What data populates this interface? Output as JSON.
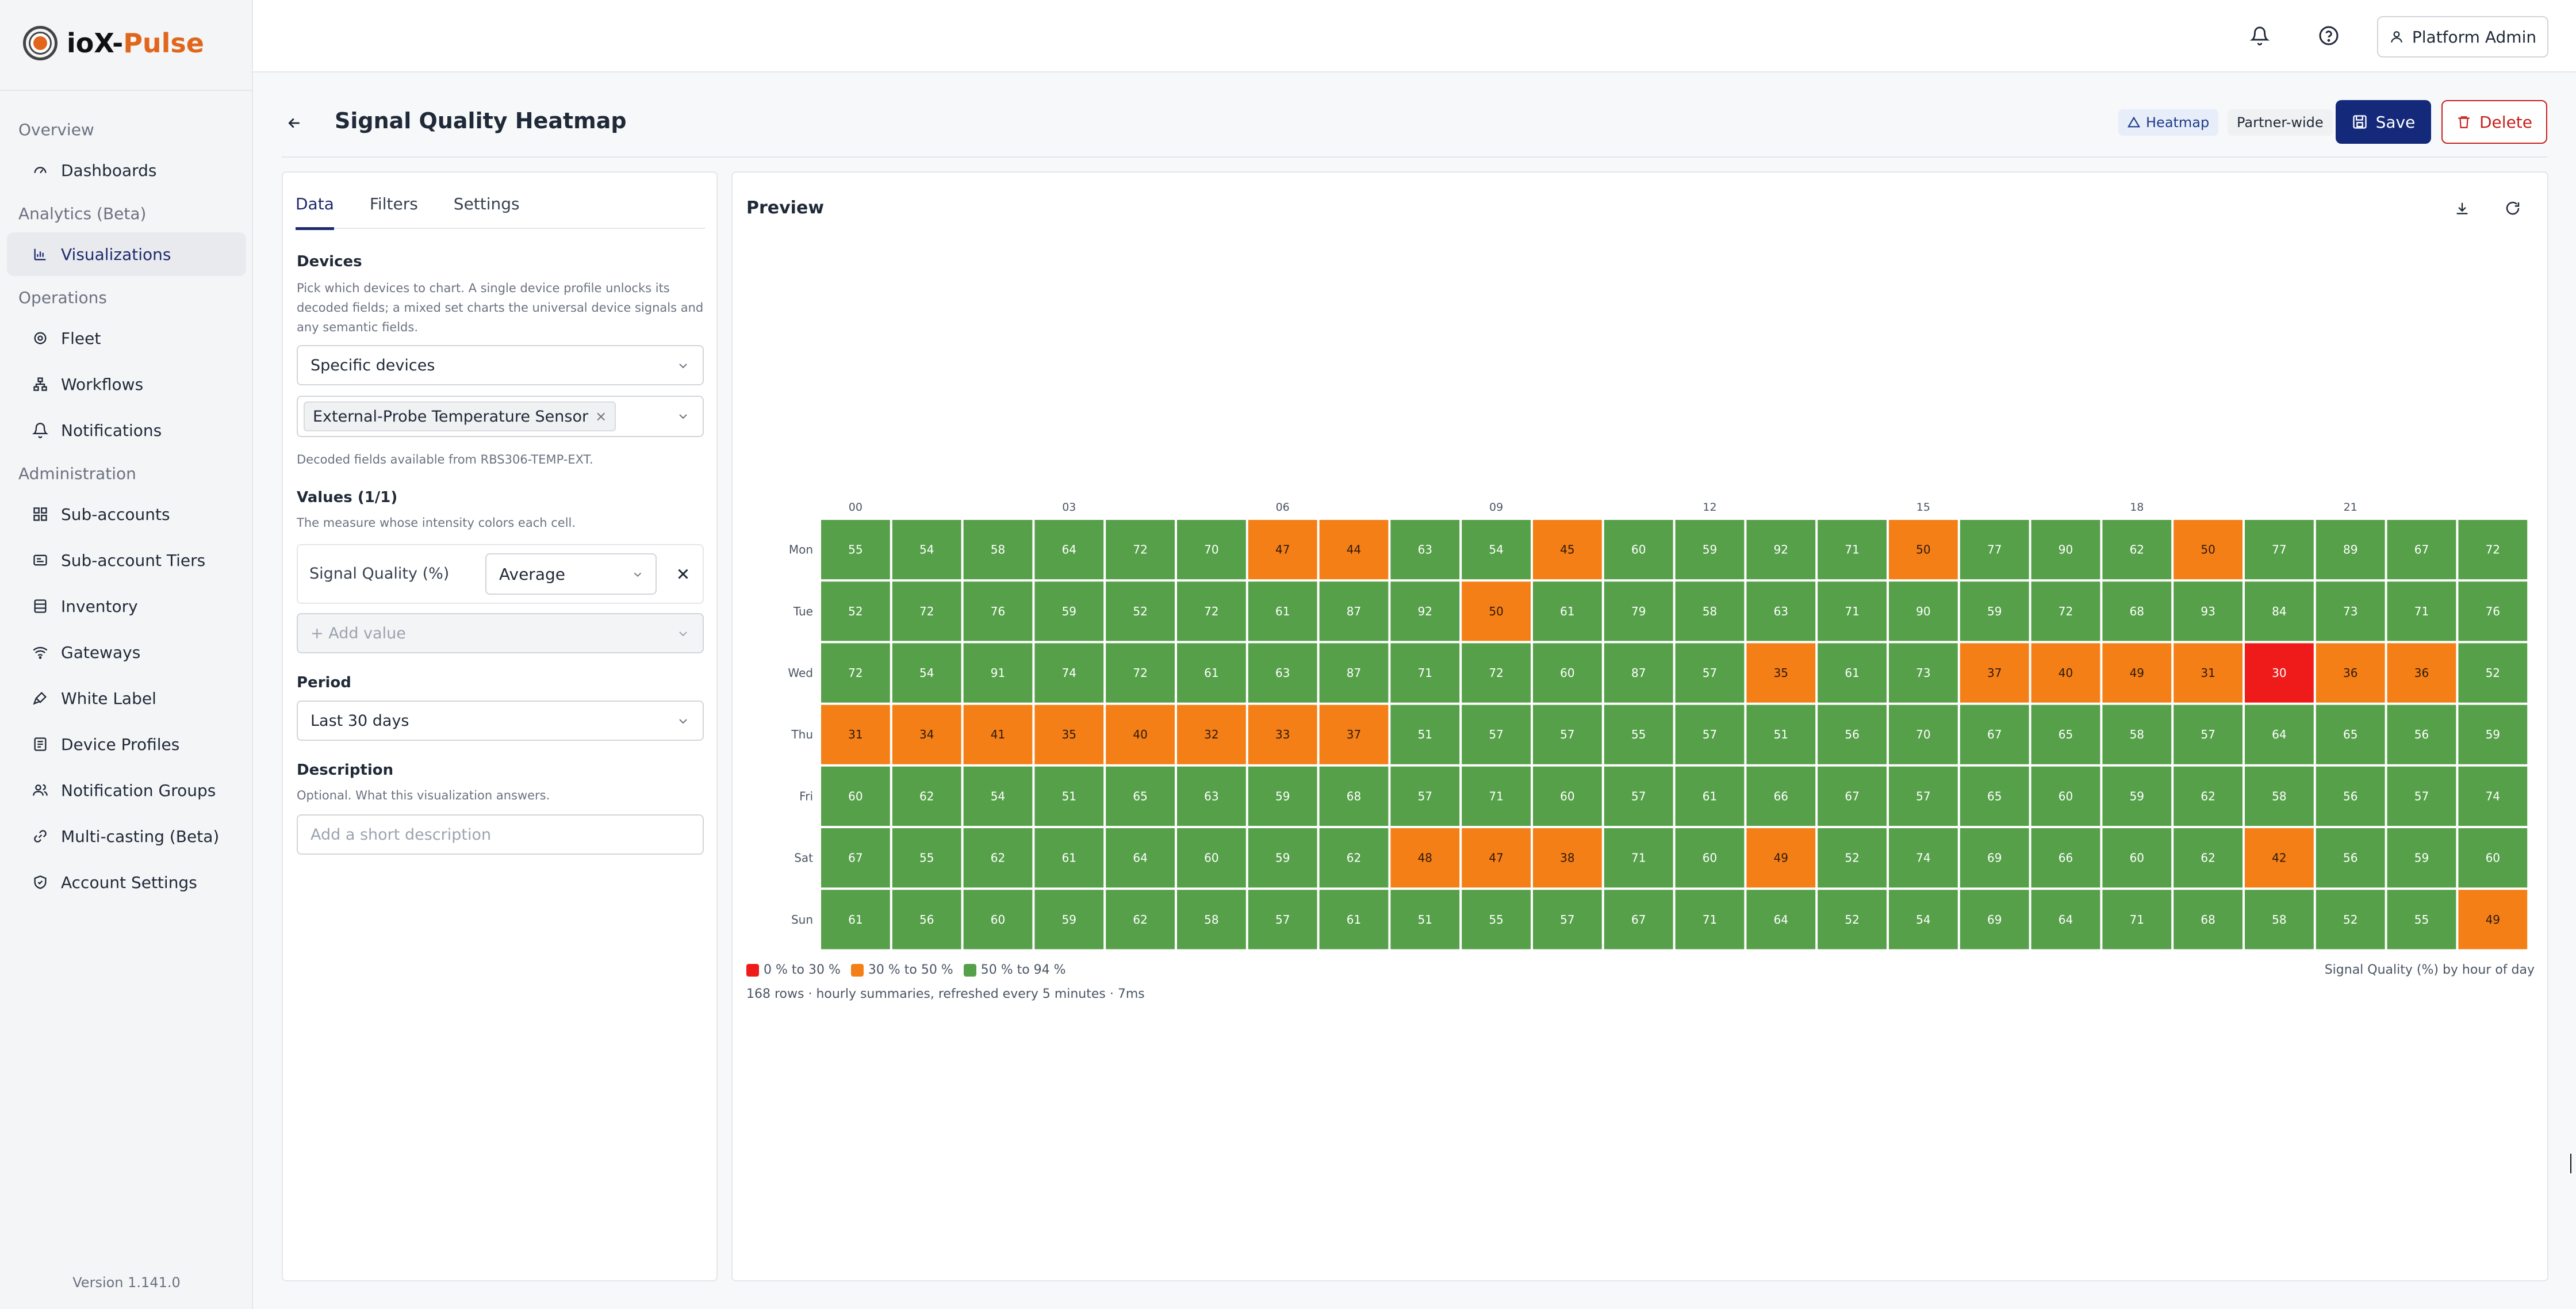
{
  "app": {
    "brand_main": "ioX-",
    "brand_accent": "Pulse",
    "version": "Version 1.141.0"
  },
  "sidebar": {
    "groups": [
      {
        "label": "Overview",
        "items": [
          {
            "label": "Dashboards",
            "icon": "gauge-icon"
          }
        ]
      },
      {
        "label": "Analytics (Beta)",
        "items": [
          {
            "label": "Visualizations",
            "icon": "bar-chart-icon",
            "active": true
          }
        ]
      },
      {
        "label": "Operations",
        "items": [
          {
            "label": "Fleet",
            "icon": "fleet-icon"
          },
          {
            "label": "Workflows",
            "icon": "workflow-icon"
          },
          {
            "label": "Notifications",
            "icon": "bell-icon"
          }
        ]
      },
      {
        "label": "Administration",
        "items": [
          {
            "label": "Sub-accounts",
            "icon": "grid-icon"
          },
          {
            "label": "Sub-account Tiers",
            "icon": "card-icon"
          },
          {
            "label": "Inventory",
            "icon": "inventory-icon"
          },
          {
            "label": "Gateways",
            "icon": "wifi-icon"
          },
          {
            "label": "White Label",
            "icon": "brush-icon"
          },
          {
            "label": "Device Profiles",
            "icon": "device-icon"
          },
          {
            "label": "Notification Groups",
            "icon": "users-icon"
          },
          {
            "label": "Multi-casting (Beta)",
            "icon": "cast-icon"
          },
          {
            "label": "Account Settings",
            "icon": "shield-check-icon"
          }
        ]
      }
    ]
  },
  "topbar": {
    "user_label": "Platform Admin"
  },
  "header": {
    "title": "Signal Quality Heatmap",
    "badge_type": "Heatmap",
    "badge_scope": "Partner-wide",
    "save_label": "Save",
    "delete_label": "Delete"
  },
  "config": {
    "tabs": [
      "Data",
      "Filters",
      "Settings"
    ],
    "devices_title": "Devices",
    "devices_help": "Pick which devices to chart. A single device profile unlocks its decoded fields; a mixed set charts the universal device signals and any semantic fields.",
    "device_mode": "Specific devices",
    "selected_device": "External-Probe Temperature Sensor",
    "decoded_note": "Decoded fields available from RBS306-TEMP-EXT.",
    "values_title": "Values (1/1)",
    "values_help": "The measure whose intensity colors each cell.",
    "value_label": "Signal Quality (%)",
    "aggregation": "Average",
    "add_value_placeholder": "+ Add value",
    "period_title": "Period",
    "period_value": "Last 30 days",
    "description_title": "Description",
    "description_help": "Optional. What this visualization answers.",
    "description_placeholder": "Add a short description"
  },
  "preview": {
    "title": "Preview",
    "caption": "Signal Quality (%) by hour of day",
    "footnote": "168 rows · hourly summaries, refreshed every 5 minutes · 7ms"
  },
  "chart_data": {
    "type": "heatmap",
    "x_tick_labels": [
      "00",
      "03",
      "06",
      "09",
      "12",
      "15",
      "18",
      "21"
    ],
    "x_tick_hours": [
      0,
      3,
      6,
      9,
      12,
      15,
      18,
      21
    ],
    "y": [
      "Mon",
      "Tue",
      "Wed",
      "Thu",
      "Fri",
      "Sat",
      "Sun"
    ],
    "values": [
      [
        55,
        54,
        58,
        64,
        72,
        70,
        47,
        44,
        63,
        54,
        45,
        60,
        59,
        92,
        71,
        50,
        77,
        90,
        62,
        50,
        77,
        89,
        67,
        72
      ],
      [
        52,
        72,
        76,
        59,
        52,
        72,
        61,
        87,
        92,
        50,
        61,
        79,
        58,
        63,
        71,
        90,
        59,
        72,
        68,
        93,
        84,
        73,
        71,
        76
      ],
      [
        72,
        54,
        91,
        74,
        72,
        61,
        63,
        87,
        71,
        72,
        60,
        87,
        57,
        35,
        61,
        73,
        37,
        40,
        49,
        31,
        30,
        36,
        36,
        52
      ],
      [
        31,
        34,
        41,
        35,
        40,
        32,
        33,
        37,
        51,
        57,
        57,
        55,
        57,
        51,
        56,
        70,
        67,
        65,
        58,
        57,
        64,
        65,
        56,
        59
      ],
      [
        60,
        62,
        54,
        51,
        65,
        63,
        59,
        68,
        57,
        71,
        60,
        57,
        61,
        66,
        67,
        57,
        65,
        60,
        59,
        62,
        58,
        56,
        57,
        74
      ],
      [
        67,
        55,
        62,
        61,
        64,
        60,
        59,
        62,
        48,
        47,
        38,
        71,
        60,
        49,
        52,
        74,
        69,
        66,
        60,
        62,
        42,
        56,
        59,
        60
      ],
      [
        61,
        56,
        60,
        59,
        62,
        58,
        57,
        61,
        51,
        55,
        57,
        67,
        71,
        64,
        52,
        54,
        69,
        64,
        71,
        68,
        58,
        52,
        55,
        49
      ]
    ],
    "legend": [
      {
        "label": "0 % to 30 %",
        "color": "#ef1b1b",
        "max": 30
      },
      {
        "label": "30 % to 50 %",
        "color": "#f57f17",
        "max": 50
      },
      {
        "label": "50 % to 94 %",
        "color": "#56a04a",
        "max": 94
      }
    ]
  },
  "colors": {
    "accent": "#14297a",
    "brand": "#e1661c",
    "danger": "#c81e1e"
  }
}
